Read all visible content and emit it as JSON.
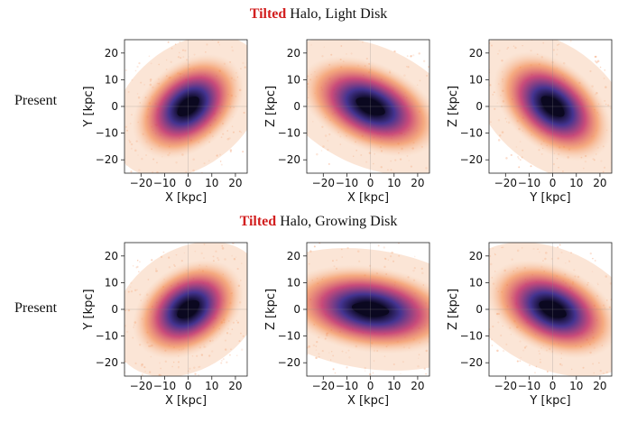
{
  "rows": [
    {
      "title_highlight": "Tilted",
      "title_rest": " Halo, Light Disk",
      "row_label": "Present"
    },
    {
      "title_highlight": "Tilted",
      "title_rest": " Halo, Growing Disk",
      "row_label": "Present"
    }
  ],
  "colors": {
    "highlight": "#d21f1f",
    "core": "#0b0820",
    "inner": "#3a2a8c",
    "mid": "#c0306a",
    "outer": "#f07a3a",
    "halo": "#f6c6a4"
  },
  "chart_data": [
    {
      "type": "heatmap",
      "xlabel": "X [kpc]",
      "ylabel": "Y [kpc]",
      "xlim": [
        -27,
        25
      ],
      "ylim": [
        -25,
        25
      ],
      "xticks": [
        -20,
        -10,
        0,
        10,
        20
      ],
      "yticks": [
        -20,
        -10,
        0,
        10,
        20
      ],
      "tick_labels_x": [
        "−20",
        "−10",
        "0",
        "10",
        "20"
      ],
      "tick_labels_y": [
        "−20",
        "−10",
        "0",
        "10",
        "20"
      ],
      "orientation_deg": 40,
      "elongation": 1.35
    },
    {
      "type": "heatmap",
      "xlabel": "X [kpc]",
      "ylabel": "Z [kpc]",
      "xlim": [
        -27,
        25
      ],
      "ylim": [
        -25,
        25
      ],
      "xticks": [
        -20,
        -10,
        0,
        10,
        20
      ],
      "yticks": [
        -20,
        -10,
        0,
        10,
        20
      ],
      "tick_labels_x": [
        "−20",
        "−10",
        "0",
        "10",
        "20"
      ],
      "tick_labels_y": [
        "−20",
        "−10",
        "0",
        "10",
        "20"
      ],
      "orientation_deg": -25,
      "elongation": 1.6
    },
    {
      "type": "heatmap",
      "xlabel": "Y [kpc]",
      "ylabel": "Z [kpc]",
      "xlim": [
        -27,
        25
      ],
      "ylim": [
        -25,
        25
      ],
      "xticks": [
        -20,
        -10,
        0,
        10,
        20
      ],
      "yticks": [
        -20,
        -10,
        0,
        10,
        20
      ],
      "tick_labels_x": [
        "−20",
        "−10",
        "0",
        "10",
        "20"
      ],
      "tick_labels_y": [
        "−20",
        "−10",
        "0",
        "10",
        "20"
      ],
      "orientation_deg": -40,
      "elongation": 1.45
    },
    {
      "type": "heatmap",
      "xlabel": "X [kpc]",
      "ylabel": "Y [kpc]",
      "xlim": [
        -27,
        25
      ],
      "ylim": [
        -25,
        25
      ],
      "xticks": [
        -20,
        -10,
        0,
        10,
        20
      ],
      "yticks": [
        -20,
        -10,
        0,
        10,
        20
      ],
      "tick_labels_x": [
        "−20",
        "−10",
        "0",
        "10",
        "20"
      ],
      "tick_labels_y": [
        "−20",
        "−10",
        "0",
        "10",
        "20"
      ],
      "orientation_deg": 35,
      "elongation": 1.3
    },
    {
      "type": "heatmap",
      "xlabel": "X [kpc]",
      "ylabel": "Z [kpc]",
      "xlim": [
        -27,
        25
      ],
      "ylim": [
        -25,
        25
      ],
      "xticks": [
        -20,
        -10,
        0,
        10,
        20
      ],
      "yticks": [
        -20,
        -10,
        0,
        10,
        20
      ],
      "tick_labels_x": [
        "−20",
        "−10",
        "0",
        "10",
        "20"
      ],
      "tick_labels_y": [
        "−20",
        "−10",
        "0",
        "10",
        "20"
      ],
      "orientation_deg": -8,
      "elongation": 1.9
    },
    {
      "type": "heatmap",
      "xlabel": "Y [kpc]",
      "ylabel": "Z [kpc]",
      "xlim": [
        -27,
        25
      ],
      "ylim": [
        -25,
        25
      ],
      "xticks": [
        -20,
        -10,
        0,
        10,
        20
      ],
      "yticks": [
        -20,
        -10,
        0,
        10,
        20
      ],
      "tick_labels_x": [
        "−20",
        "−10",
        "0",
        "10",
        "20"
      ],
      "tick_labels_y": [
        "−20",
        "−10",
        "0",
        "10",
        "20"
      ],
      "orientation_deg": -25,
      "elongation": 1.5
    }
  ]
}
